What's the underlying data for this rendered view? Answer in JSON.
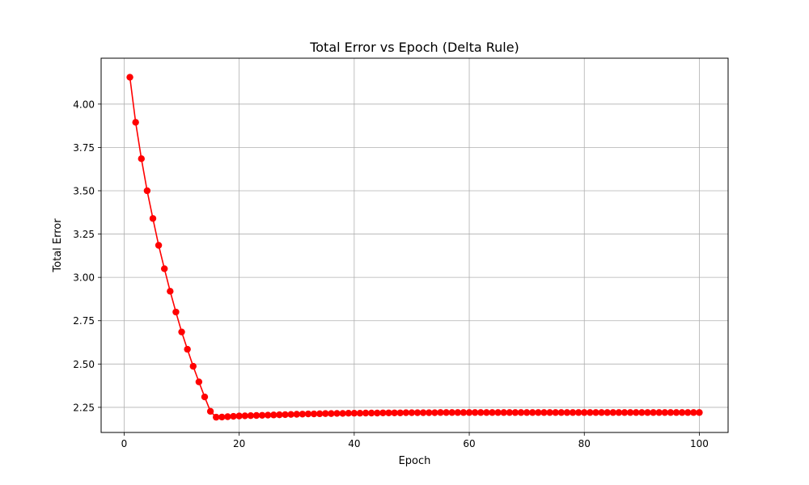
{
  "chart_data": {
    "type": "line",
    "title": "Total Error vs Epoch (Delta Rule)",
    "xlabel": "Epoch",
    "ylabel": "Total Error",
    "xlim": [
      -4,
      105
    ],
    "ylim": [
      2.105,
      4.265
    ],
    "x_ticks": [
      0,
      20,
      40,
      60,
      80,
      100
    ],
    "x_tick_labels": [
      "0",
      "20",
      "40",
      "60",
      "80",
      "100"
    ],
    "y_ticks": [
      2.25,
      2.5,
      2.75,
      3.0,
      3.25,
      3.5,
      3.75,
      4.0
    ],
    "y_tick_labels": [
      "2.25",
      "2.50",
      "2.75",
      "3.00",
      "3.25",
      "3.50",
      "3.75",
      "4.00"
    ],
    "grid": true,
    "legend": "none",
    "series": [
      {
        "color": "#ff0000",
        "marker": "circle",
        "x": [
          1,
          2,
          3,
          4,
          5,
          6,
          7,
          8,
          9,
          10,
          11,
          12,
          13,
          14,
          15,
          16,
          17,
          18,
          19,
          20,
          21,
          22,
          23,
          24,
          25,
          26,
          27,
          28,
          29,
          30,
          31,
          32,
          33,
          34,
          35,
          36,
          37,
          38,
          39,
          40,
          41,
          42,
          43,
          44,
          45,
          46,
          47,
          48,
          49,
          50,
          51,
          52,
          53,
          54,
          55,
          56,
          57,
          58,
          59,
          60,
          61,
          62,
          63,
          64,
          65,
          66,
          67,
          68,
          69,
          70,
          71,
          72,
          73,
          74,
          75,
          76,
          77,
          78,
          79,
          80,
          81,
          82,
          83,
          84,
          85,
          86,
          87,
          88,
          89,
          90,
          91,
          92,
          93,
          94,
          95,
          96,
          97,
          98,
          99,
          100
        ],
        "y": [
          4.155,
          3.895,
          3.685,
          3.5,
          3.34,
          3.185,
          3.05,
          2.92,
          2.8,
          2.685,
          2.585,
          2.487,
          2.397,
          2.31,
          2.227,
          2.193,
          2.194,
          2.196,
          2.198,
          2.2,
          2.201,
          2.202,
          2.203,
          2.204,
          2.205,
          2.206,
          2.207,
          2.208,
          2.209,
          2.21,
          2.211,
          2.212,
          2.212,
          2.213,
          2.214,
          2.214,
          2.215,
          2.215,
          2.216,
          2.216,
          2.216,
          2.217,
          2.217,
          2.217,
          2.218,
          2.218,
          2.218,
          2.218,
          2.219,
          2.219,
          2.219,
          2.219,
          2.219,
          2.219,
          2.22,
          2.22,
          2.22,
          2.22,
          2.22,
          2.22,
          2.22,
          2.22,
          2.22,
          2.22,
          2.22,
          2.22,
          2.22,
          2.22,
          2.22,
          2.22,
          2.22,
          2.22,
          2.22,
          2.22,
          2.22,
          2.22,
          2.22,
          2.22,
          2.22,
          2.22,
          2.22,
          2.22,
          2.22,
          2.22,
          2.22,
          2.22,
          2.22,
          2.22,
          2.22,
          2.22,
          2.22,
          2.22,
          2.22,
          2.22,
          2.22,
          2.22,
          2.22,
          2.22,
          2.22,
          2.22
        ]
      }
    ]
  }
}
